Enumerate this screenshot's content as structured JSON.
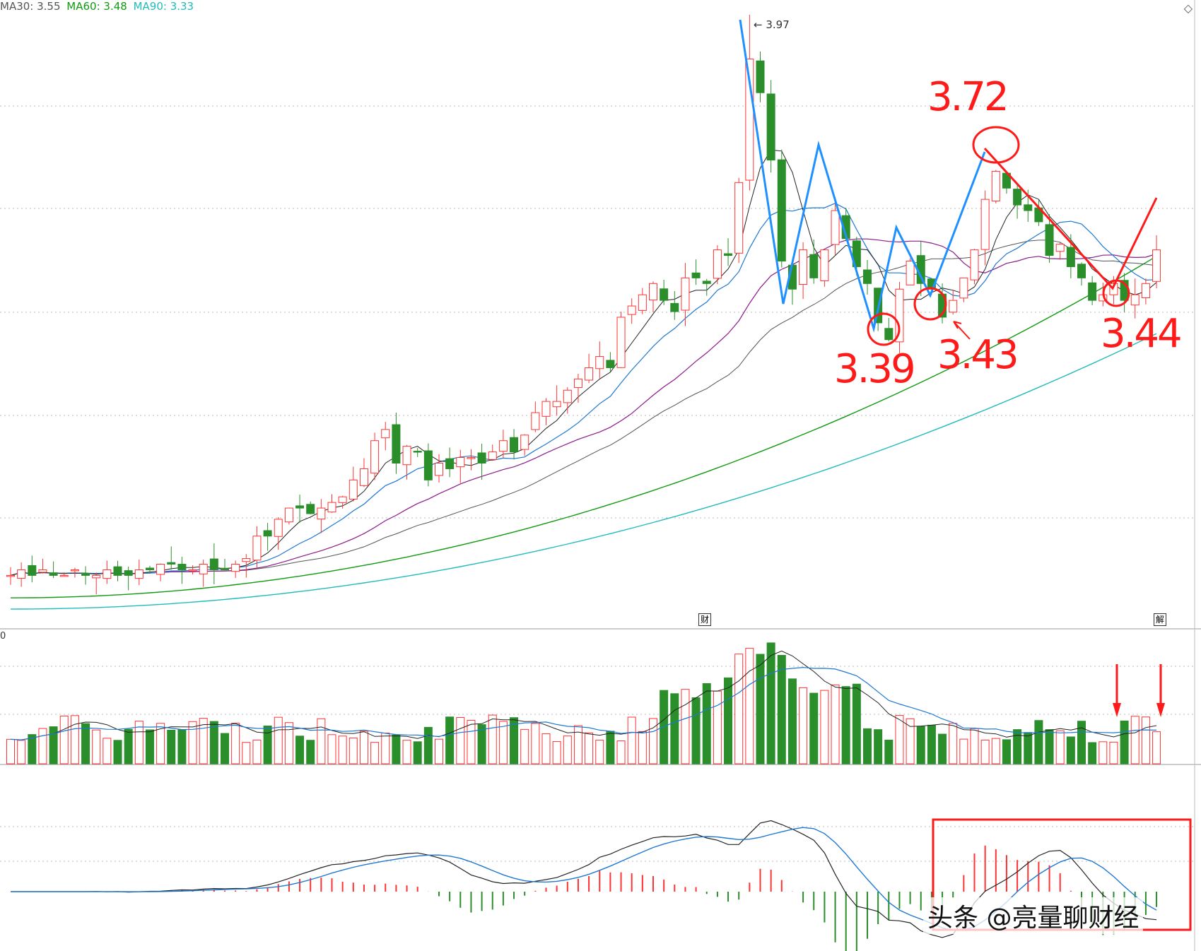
{
  "header": {
    "ma30": "MA30: 3.55",
    "ma60": "MA60: 3.48",
    "ma90": "MA90: 3.33",
    "colors": {
      "ma30": "#555555",
      "ma60": "#119911",
      "ma90": "#22bbbb"
    }
  },
  "icons": {
    "settings": "diamond-icon"
  },
  "markers": {
    "cai": "财",
    "jie": "解"
  },
  "axis_zero": "0",
  "peak_label": "3.97",
  "annotations": {
    "a372": "3.72",
    "a339": "3.39",
    "a343": "3.43",
    "a344": "3.44"
  },
  "watermark": "头条 @亮量聊财经",
  "chart_data": [
    {
      "type": "candlestick",
      "title": "",
      "colors": {
        "up": "#ff3333",
        "down": "#2a8f2a",
        "ma30": "#555555",
        "ma60": "#119911",
        "ma90": "#22bbbb"
      },
      "closes": [
        3.0,
        3.01,
        3.0,
        3.01,
        3.0,
        3.0,
        3.01,
        3.0,
        3.0,
        3.01,
        3.0,
        3.0,
        3.01,
        3.01,
        3.02,
        3.02,
        3.01,
        3.01,
        3.02,
        3.01,
        3.01,
        3.02,
        3.03,
        3.07,
        3.07,
        3.1,
        3.12,
        3.12,
        3.11,
        3.12,
        3.13,
        3.14,
        3.17,
        3.19,
        3.24,
        3.26,
        3.2,
        3.23,
        3.22,
        3.17,
        3.2,
        3.19,
        3.21,
        3.21,
        3.2,
        3.22,
        3.24,
        3.22,
        3.25,
        3.29,
        3.31,
        3.31,
        3.33,
        3.35,
        3.37,
        3.39,
        3.37,
        3.46,
        3.48,
        3.5,
        3.52,
        3.49,
        3.47,
        3.53,
        3.53,
        3.52,
        3.58,
        3.57,
        3.7,
        3.92,
        3.86,
        3.74,
        3.56,
        3.51,
        3.58,
        3.53,
        3.58,
        3.65,
        3.6,
        3.55,
        3.52,
        3.45,
        3.42,
        3.51,
        3.56,
        3.52,
        3.51,
        3.46,
        3.49,
        3.53,
        3.58,
        3.67,
        3.72,
        3.69,
        3.66,
        3.65,
        3.63,
        3.57,
        3.59,
        3.55,
        3.53,
        3.49,
        3.5,
        3.52,
        3.49,
        3.5,
        3.52,
        3.58
      ],
      "peak": 3.97,
      "lows_marked": [
        3.39,
        3.43,
        3.44
      ],
      "high_marked": 3.72
    },
    {
      "type": "bar",
      "title": "",
      "description_series": "volume",
      "colors": {
        "up": "#ff3333",
        "down": "#2a8f2a",
        "ma5": "#222222",
        "ma10": "#1f78d1"
      }
    },
    {
      "type": "line",
      "title": "",
      "description_series": "MACD",
      "colors": {
        "dif": "#222222",
        "dea": "#1f78d1",
        "pos": "#ff3333",
        "neg": "#2a8f2a"
      }
    }
  ]
}
